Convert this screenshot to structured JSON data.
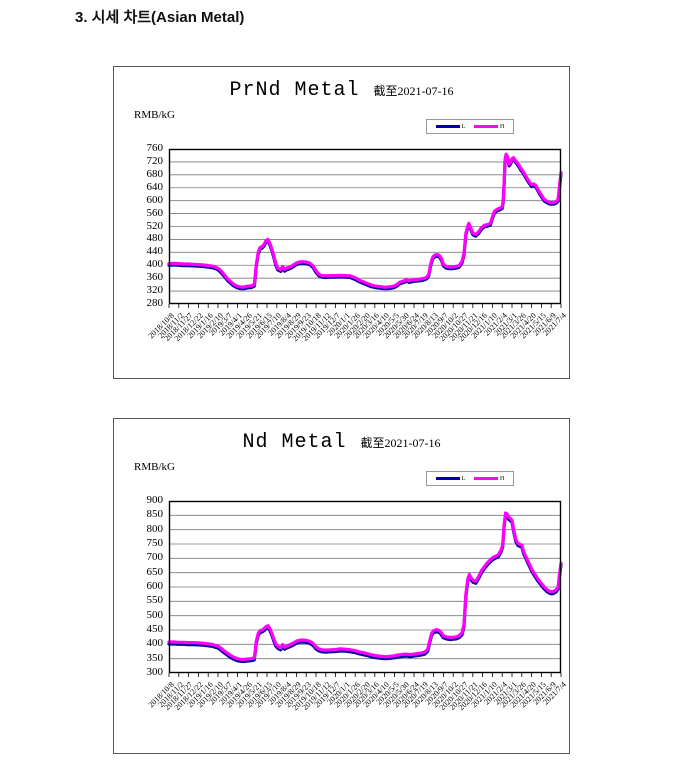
{
  "page": {
    "heading": "3. 시세 차트(Asian Metal)"
  },
  "chart_data": [
    {
      "type": "line",
      "title": "PrNd Metal",
      "subtitle": "截至2021-07-16",
      "ylabel": "RMB/kG",
      "ylim": [
        280,
        760
      ],
      "ytick_step": 40,
      "y_tick_labels": [
        "760",
        "720",
        "680",
        "640",
        "600",
        "560",
        "520",
        "480",
        "440",
        "400",
        "360",
        "320",
        "280"
      ],
      "x_range": [
        0,
        40
      ],
      "grid": true,
      "legend_position": "top-right",
      "x_tick_labels": [
        "2018/10/8",
        "2018/11/2",
        "2018/11/27",
        "2018/12/22",
        "2019/1/16",
        "2019/2/10",
        "2019/3/7",
        "2019/4/1",
        "2019/4/26",
        "2019/5/21",
        "2019/6/15",
        "2019/7/10",
        "2019/8/4",
        "2019/8/29",
        "2019/9/23",
        "2019/10/18",
        "2019/11/12",
        "2019/12/7",
        "2020/1/1",
        "2020/1/26",
        "2020/2/20",
        "2020/3/16",
        "2020/4/10",
        "2020/5/5",
        "2020/5/30",
        "2020/6/24",
        "2020/7/19",
        "2020/8/13",
        "2020/9/7",
        "2020/10/2",
        "2020/10/27",
        "2020/11/21",
        "2020/12/16",
        "2021/1/10",
        "2021/2/4",
        "2021/3/1",
        "2021/3/26",
        "2021/4/20",
        "2021/5/15",
        "2021/6/9",
        "2021/7/4"
      ],
      "legend": [
        {
          "name": "L",
          "color": "#0000A0",
          "value_offset": -5
        },
        {
          "name": "H",
          "color": "#FF00FF",
          "value_offset": 0
        }
      ],
      "points": [
        [
          0,
          405
        ],
        [
          0.5,
          406
        ],
        [
          1,
          405
        ],
        [
          1.5,
          404
        ],
        [
          2,
          404
        ],
        [
          2.5,
          403
        ],
        [
          3,
          402
        ],
        [
          3.5,
          401
        ],
        [
          4,
          399
        ],
        [
          4.5,
          397
        ],
        [
          5,
          391
        ],
        [
          5.3,
          383
        ],
        [
          5.6,
          372
        ],
        [
          6,
          357
        ],
        [
          6.3,
          349
        ],
        [
          6.6,
          341
        ],
        [
          6.9,
          336
        ],
        [
          7.2,
          333
        ],
        [
          7.6,
          332
        ],
        [
          8,
          335
        ],
        [
          8.4,
          336
        ],
        [
          8.7,
          340
        ],
        [
          8.8,
          365
        ],
        [
          8.9,
          400
        ],
        [
          9.1,
          440
        ],
        [
          9.3,
          455
        ],
        [
          9.5,
          458
        ],
        [
          9.7,
          465
        ],
        [
          9.9,
          477
        ],
        [
          10.1,
          480
        ],
        [
          10.3,
          468
        ],
        [
          10.5,
          450
        ],
        [
          10.7,
          428
        ],
        [
          10.9,
          405
        ],
        [
          11.1,
          391
        ],
        [
          11.4,
          386
        ],
        [
          11.6,
          396
        ],
        [
          11.8,
          387
        ],
        [
          12,
          391
        ],
        [
          12.3,
          394
        ],
        [
          12.6,
          399
        ],
        [
          13,
          407
        ],
        [
          13.3,
          410
        ],
        [
          13.6,
          411
        ],
        [
          14,
          410
        ],
        [
          14.4,
          406
        ],
        [
          14.7,
          398
        ],
        [
          15,
          383
        ],
        [
          15.3,
          372
        ],
        [
          15.6,
          368
        ],
        [
          16,
          367
        ],
        [
          16.5,
          368
        ],
        [
          17,
          368
        ],
        [
          17.5,
          369
        ],
        [
          18,
          368
        ],
        [
          18.5,
          367
        ],
        [
          19,
          361
        ],
        [
          19.4,
          354
        ],
        [
          19.8,
          349
        ],
        [
          20.2,
          344
        ],
        [
          20.6,
          339
        ],
        [
          21,
          336
        ],
        [
          21.5,
          334
        ],
        [
          22,
          332
        ],
        [
          22.5,
          333
        ],
        [
          23,
          336
        ],
        [
          23.3,
          341
        ],
        [
          23.5,
          347
        ],
        [
          23.8,
          350
        ],
        [
          24,
          352
        ],
        [
          24.2,
          356
        ],
        [
          24.5,
          352
        ],
        [
          24.8,
          354
        ],
        [
          25.2,
          356
        ],
        [
          25.6,
          357
        ],
        [
          26,
          359
        ],
        [
          26.3,
          363
        ],
        [
          26.5,
          372
        ],
        [
          26.7,
          404
        ],
        [
          26.9,
          424
        ],
        [
          27.1,
          431
        ],
        [
          27.4,
          433
        ],
        [
          27.6,
          430
        ],
        [
          27.8,
          421
        ],
        [
          28,
          403
        ],
        [
          28.3,
          396
        ],
        [
          28.7,
          394
        ],
        [
          29,
          395
        ],
        [
          29.3,
          396
        ],
        [
          29.6,
          399
        ],
        [
          29.9,
          412
        ],
        [
          30.1,
          436
        ],
        [
          30.3,
          500
        ],
        [
          30.5,
          523
        ],
        [
          30.6,
          530
        ],
        [
          30.8,
          515
        ],
        [
          31,
          500
        ],
        [
          31.3,
          495
        ],
        [
          31.6,
          504
        ],
        [
          31.9,
          517
        ],
        [
          32.2,
          524
        ],
        [
          32.5,
          526
        ],
        [
          32.8,
          530
        ],
        [
          33,
          550
        ],
        [
          33.2,
          567
        ],
        [
          33.5,
          574
        ],
        [
          33.8,
          577
        ],
        [
          34,
          581
        ],
        [
          34.1,
          600
        ],
        [
          34.2,
          660
        ],
        [
          34.3,
          730
        ],
        [
          34.4,
          744
        ],
        [
          34.55,
          736
        ],
        [
          34.7,
          713
        ],
        [
          34.85,
          718
        ],
        [
          35,
          730
        ],
        [
          35.15,
          733
        ],
        [
          35.3,
          727
        ],
        [
          35.5,
          719
        ],
        [
          35.7,
          710
        ],
        [
          35.9,
          700
        ],
        [
          36.1,
          692
        ],
        [
          36.4,
          676
        ],
        [
          36.7,
          661
        ],
        [
          37,
          649
        ],
        [
          37.2,
          652
        ],
        [
          37.45,
          646
        ],
        [
          37.7,
          632
        ],
        [
          38,
          617
        ],
        [
          38.3,
          604
        ],
        [
          38.6,
          598
        ],
        [
          38.9,
          594
        ],
        [
          39.2,
          594
        ],
        [
          39.5,
          597
        ],
        [
          39.7,
          604
        ],
        [
          39.85,
          645
        ],
        [
          40,
          687
        ]
      ]
    },
    {
      "type": "line",
      "title": "Nd Metal",
      "subtitle": "截至2021-07-16",
      "ylabel": "RMB/kG",
      "ylim": [
        300,
        900
      ],
      "ytick_step": 50,
      "y_tick_labels": [
        "900",
        "850",
        "800",
        "750",
        "700",
        "650",
        "600",
        "550",
        "500",
        "450",
        "400",
        "350",
        "300"
      ],
      "x_range": [
        0,
        40
      ],
      "grid": true,
      "legend_position": "top-right",
      "x_tick_labels": [
        "2018/10/8",
        "2018/11/2",
        "2018/11/27",
        "2018/12/22",
        "2019/1/16",
        "2019/2/10",
        "2019/3/7",
        "2019/4/1",
        "2019/4/26",
        "2019/5/21",
        "2019/6/15",
        "2019/7/10",
        "2019/8/4",
        "2019/8/29",
        "2019/9/23",
        "2019/10/18",
        "2019/11/12",
        "2019/12/7",
        "2020/1/1",
        "2020/1/26",
        "2020/2/20",
        "2020/3/16",
        "2020/4/10",
        "2020/5/5",
        "2020/5/30",
        "2020/6/24",
        "2020/7/19",
        "2020/8/13",
        "2020/9/7",
        "2020/10/2",
        "2020/10/27",
        "2020/11/21",
        "2020/12/16",
        "2021/1/10",
        "2021/2/4",
        "2021/3/1",
        "2021/3/26",
        "2021/4/20",
        "2021/5/15",
        "2021/6/9",
        "2021/7/4"
      ],
      "legend": [
        {
          "name": "L",
          "color": "#0000A0",
          "value_offset": -7
        },
        {
          "name": "H",
          "color": "#FF00FF",
          "value_offset": 0
        }
      ],
      "points": [
        [
          0,
          408
        ],
        [
          0.5,
          408
        ],
        [
          1,
          407
        ],
        [
          1.5,
          407
        ],
        [
          2,
          406
        ],
        [
          2.5,
          406
        ],
        [
          3,
          405
        ],
        [
          3.5,
          404
        ],
        [
          4,
          402
        ],
        [
          4.5,
          399
        ],
        [
          5,
          394
        ],
        [
          5.3,
          387
        ],
        [
          5.6,
          378
        ],
        [
          6,
          368
        ],
        [
          6.3,
          361
        ],
        [
          6.6,
          355
        ],
        [
          6.9,
          351
        ],
        [
          7.2,
          348
        ],
        [
          7.6,
          347
        ],
        [
          8,
          349
        ],
        [
          8.4,
          350
        ],
        [
          8.7,
          353
        ],
        [
          8.8,
          378
        ],
        [
          8.9,
          410
        ],
        [
          9.1,
          438
        ],
        [
          9.3,
          448
        ],
        [
          9.5,
          450
        ],
        [
          9.7,
          455
        ],
        [
          9.9,
          462
        ],
        [
          10.1,
          465
        ],
        [
          10.3,
          455
        ],
        [
          10.5,
          438
        ],
        [
          10.7,
          418
        ],
        [
          10.9,
          401
        ],
        [
          11.1,
          393
        ],
        [
          11.4,
          388
        ],
        [
          11.6,
          399
        ],
        [
          11.8,
          390
        ],
        [
          12,
          394
        ],
        [
          12.3,
          398
        ],
        [
          12.6,
          403
        ],
        [
          13,
          411
        ],
        [
          13.3,
          414
        ],
        [
          13.6,
          415
        ],
        [
          14,
          414
        ],
        [
          14.4,
          410
        ],
        [
          14.7,
          403
        ],
        [
          15,
          391
        ],
        [
          15.3,
          384
        ],
        [
          15.6,
          381
        ],
        [
          16,
          380
        ],
        [
          16.5,
          381
        ],
        [
          17,
          382
        ],
        [
          17.5,
          384
        ],
        [
          18,
          383
        ],
        [
          18.5,
          381
        ],
        [
          19,
          378
        ],
        [
          19.4,
          374
        ],
        [
          19.8,
          371
        ],
        [
          20.2,
          368
        ],
        [
          20.6,
          364
        ],
        [
          21,
          361
        ],
        [
          21.5,
          359
        ],
        [
          22,
          357
        ],
        [
          22.5,
          358
        ],
        [
          23,
          360
        ],
        [
          23.4,
          363
        ],
        [
          23.8,
          365
        ],
        [
          24.2,
          366
        ],
        [
          24.6,
          364
        ],
        [
          25,
          366
        ],
        [
          25.4,
          368
        ],
        [
          25.8,
          370
        ],
        [
          26.1,
          373
        ],
        [
          26.4,
          383
        ],
        [
          26.6,
          412
        ],
        [
          26.8,
          438
        ],
        [
          27,
          448
        ],
        [
          27.3,
          451
        ],
        [
          27.6,
          448
        ],
        [
          27.8,
          440
        ],
        [
          28,
          430
        ],
        [
          28.3,
          426
        ],
        [
          28.7,
          424
        ],
        [
          29,
          425
        ],
        [
          29.3,
          426
        ],
        [
          29.6,
          430
        ],
        [
          29.9,
          440
        ],
        [
          30.1,
          470
        ],
        [
          30.3,
          575
        ],
        [
          30.5,
          630
        ],
        [
          30.65,
          644
        ],
        [
          30.8,
          634
        ],
        [
          31,
          624
        ],
        [
          31.3,
          620
        ],
        [
          31.6,
          637
        ],
        [
          31.9,
          658
        ],
        [
          32.2,
          672
        ],
        [
          32.5,
          685
        ],
        [
          32.8,
          695
        ],
        [
          33,
          702
        ],
        [
          33.3,
          707
        ],
        [
          33.6,
          712
        ],
        [
          33.9,
          730
        ],
        [
          34.05,
          748
        ],
        [
          34.2,
          820
        ],
        [
          34.35,
          858
        ],
        [
          34.5,
          855
        ],
        [
          34.65,
          843
        ],
        [
          34.8,
          840
        ],
        [
          35,
          833
        ],
        [
          35.2,
          795
        ],
        [
          35.4,
          765
        ],
        [
          35.6,
          752
        ],
        [
          35.8,
          749
        ],
        [
          36,
          746
        ],
        [
          36.2,
          722
        ],
        [
          36.5,
          700
        ],
        [
          36.8,
          678
        ],
        [
          37,
          663
        ],
        [
          37.3,
          646
        ],
        [
          37.6,
          630
        ],
        [
          38,
          612
        ],
        [
          38.3,
          600
        ],
        [
          38.6,
          590
        ],
        [
          38.9,
          584
        ],
        [
          39.2,
          584
        ],
        [
          39.5,
          590
        ],
        [
          39.7,
          600
        ],
        [
          39.85,
          645
        ],
        [
          40,
          683
        ]
      ]
    }
  ]
}
